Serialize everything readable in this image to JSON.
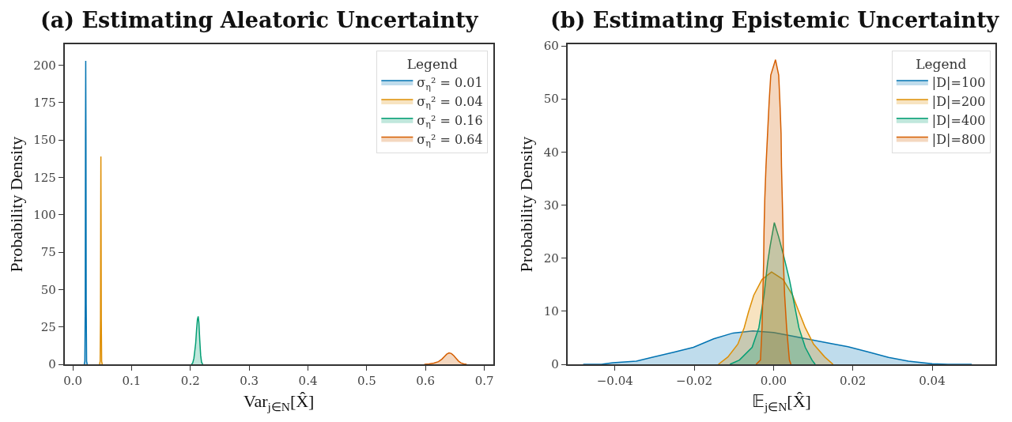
{
  "chart_data": [
    {
      "type": "area",
      "title": "(a) Estimating Aleatoric Uncertainty",
      "xlabel": "Var$_{j∈N}$[X̂]",
      "ylabel": "Probability Density",
      "legend_title": "Legend",
      "legend": "top right",
      "xlim": [
        -0.014,
        0.715
      ],
      "ylim": [
        0,
        214
      ],
      "xticks": [
        {
          "value": 0,
          "label": "0.0"
        },
        0.1,
        0.2,
        0.3,
        0.4,
        0.5,
        0.6,
        0.7
      ],
      "yticks": [
        0,
        25,
        50,
        75,
        100,
        125,
        150,
        175,
        200
      ],
      "series": [
        {
          "name": "σ$_{η}$² = 0.01",
          "color": "#0173b2",
          "x": [
            0.0195,
            0.0205,
            0.0212,
            0.0216,
            0.022,
            0.0224,
            0.0228,
            0.0235,
            0.0245
          ],
          "values": [
            0,
            2,
            40,
            150,
            203,
            150,
            40,
            2,
            0
          ]
        },
        {
          "name": "σ$_{η}$² = 0.04",
          "color": "#de8f05",
          "x": [
            0.0455,
            0.0465,
            0.0471,
            0.0475,
            0.0478,
            0.0481,
            0.0485,
            0.0491,
            0.0501
          ],
          "values": [
            0,
            2,
            30,
            100,
            139,
            100,
            30,
            2,
            0
          ]
        },
        {
          "name": "σ$_{η}$² = 0.16",
          "color": "#029e73",
          "x": [
            0.202,
            0.204,
            0.206,
            0.2075,
            0.209,
            0.2105,
            0.212,
            0.2133,
            0.2145,
            0.216,
            0.2175,
            0.219,
            0.221
          ],
          "values": [
            0,
            1,
            4,
            9,
            14,
            23,
            30,
            32,
            28,
            16,
            6,
            1.5,
            0
          ]
        },
        {
          "name": "σ$_{η}$² = 0.64",
          "color": "#d55e00",
          "x": [
            0.598,
            0.606,
            0.614,
            0.622,
            0.628,
            0.632,
            0.636,
            0.64,
            0.644,
            0.648,
            0.652,
            0.656,
            0.66,
            0.665,
            0.67
          ],
          "values": [
            0,
            0.3,
            0.8,
            1.8,
            3.5,
            5.2,
            6.8,
            7.6,
            7.2,
            5.8,
            4,
            2.2,
            1,
            0.3,
            0
          ]
        }
      ]
    },
    {
      "type": "area",
      "title": "(b) Estimating Epistemic Uncertainty",
      "xlabel": "𝔼$_{j∈N}$[X̂]",
      "ylabel": "Probability Density",
      "legend_title": "Legend",
      "legend": "top right",
      "xlim": [
        -0.052,
        0.056
      ],
      "ylim": [
        0,
        60.3
      ],
      "xticks": [
        {
          "value": -0.04,
          "label": "−0.04"
        },
        {
          "value": -0.02,
          "label": "−0.02"
        },
        {
          "value": 0,
          "label": "0.00"
        },
        0.02,
        0.04
      ],
      "yticks": [
        0,
        10,
        20,
        30,
        40,
        50,
        60
      ],
      "series": [
        {
          "name": "|D|=100",
          "color": "#0173b2",
          "x": [
            -0.048,
            -0.0434,
            -0.0405,
            -0.0346,
            -0.0307,
            -0.025,
            -0.0202,
            -0.0151,
            -0.0102,
            -0.0052,
            0,
            0.005,
            0.0083,
            0.014,
            0.0188,
            0.024,
            0.029,
            0.034,
            0.04,
            0.044,
            0.05
          ],
          "values": [
            0,
            0,
            0.3,
            0.6,
            1.3,
            2.3,
            3.2,
            4.8,
            5.9,
            6.3,
            6.0,
            5.3,
            4.8,
            4.0,
            3.3,
            2.3,
            1.3,
            0.6,
            0.1,
            0,
            0
          ]
        },
        {
          "name": "|D|=200",
          "color": "#de8f05",
          "x": [
            -0.0139,
            -0.0115,
            -0.009,
            -0.0074,
            -0.0063,
            -0.005,
            -0.0029,
            -0.0005,
            0.0024,
            0.0048,
            0.0064,
            0.008,
            0.0101,
            0.0129,
            0.015
          ],
          "values": [
            0,
            1.4,
            3.8,
            6.9,
            9.9,
            13,
            16,
            17.4,
            16,
            13,
            9.9,
            6.9,
            3.8,
            1.4,
            0
          ]
        },
        {
          "name": "|D|=400",
          "color": "#029e73",
          "x": [
            -0.011,
            -0.0086,
            -0.0054,
            -0.0037,
            -0.0024,
            -0.0015,
            -0.0009,
            0.0002,
            0.0013,
            0.0026,
            0.004,
            0.0048,
            0.0064,
            0.008,
            0.0097,
            0.0105
          ],
          "values": [
            0,
            0.8,
            3.2,
            6.9,
            13,
            19.1,
            22.1,
            26.7,
            24,
            20.3,
            16,
            13,
            6.9,
            3.2,
            0.8,
            0
          ]
        },
        {
          "name": "|D|=800",
          "color": "#d55e00",
          "x": [
            -0.0044,
            -0.0033,
            -0.0029,
            -0.0027,
            -0.0025,
            -0.0024,
            -0.0022,
            -0.0019,
            -0.0015,
            -0.0011,
            -0.0007,
            0.0005,
            0.0013,
            0.0016,
            0.0019,
            0.002,
            0.0022,
            0.0024,
            0.0025,
            0.0028,
            0.0033,
            0.004,
            0.0044
          ],
          "values": [
            0,
            0.8,
            6.9,
            13,
            19.1,
            25.2,
            31.3,
            37.4,
            43.5,
            49.6,
            54.5,
            57.4,
            54.5,
            49.6,
            43.5,
            37.4,
            31.3,
            25.2,
            19.1,
            13,
            6.9,
            0.8,
            0
          ]
        }
      ]
    }
  ]
}
